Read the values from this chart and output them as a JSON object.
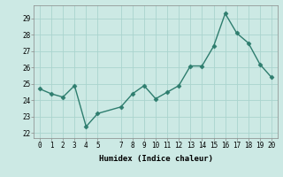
{
  "x": [
    0,
    1,
    2,
    3,
    4,
    5,
    7,
    8,
    9,
    10,
    11,
    12,
    13,
    14,
    15,
    16,
    17,
    18,
    19,
    20
  ],
  "y": [
    24.7,
    24.4,
    24.2,
    24.9,
    22.4,
    23.2,
    23.6,
    24.4,
    24.9,
    24.1,
    24.5,
    24.9,
    26.1,
    26.1,
    27.3,
    29.3,
    28.1,
    27.5,
    26.2,
    25.4
  ],
  "line_color": "#2e7d6e",
  "marker": "D",
  "marker_size": 2.5,
  "bg_color": "#cce9e4",
  "grid_color": "#aad4ce",
  "xlabel": "Humidex (Indice chaleur)",
  "xlim": [
    -0.5,
    20.5
  ],
  "ylim": [
    21.7,
    29.8
  ],
  "yticks": [
    22,
    23,
    24,
    25,
    26,
    27,
    28,
    29
  ],
  "xticks": [
    0,
    1,
    2,
    3,
    4,
    5,
    7,
    8,
    9,
    10,
    11,
    12,
    13,
    14,
    15,
    16,
    17,
    18,
    19,
    20
  ],
  "xtick_labels": [
    "0",
    "1",
    "2",
    "3",
    "4",
    "5",
    "7",
    "8",
    "9",
    "10",
    "11",
    "12",
    "13",
    "14",
    "15",
    "16",
    "17",
    "18",
    "19",
    "20"
  ],
  "tick_fontsize": 5.5,
  "xlabel_fontsize": 6.5,
  "line_width": 1.0
}
